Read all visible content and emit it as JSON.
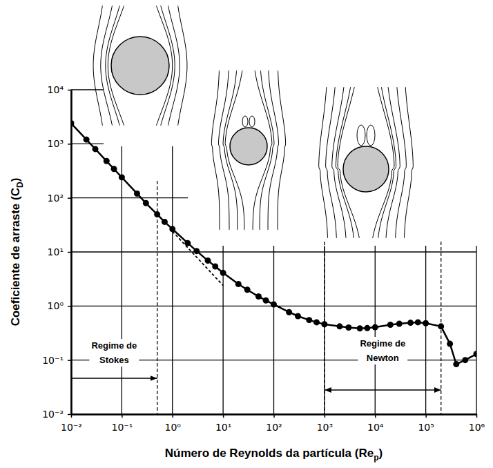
{
  "chart_data": {
    "type": "line",
    "x_label": [
      "Número de Reynolds da partícula (Re",
      "p",
      ")"
    ],
    "y_label": [
      "Coeficiente de arraste (C",
      "D",
      ")"
    ],
    "log": true,
    "grid": true,
    "xlim": [
      0.01,
      1000000
    ],
    "ylim": [
      0.01,
      10000
    ],
    "xticks": [
      {
        "value": 0.01,
        "label": "10⁻²"
      },
      {
        "value": 0.1,
        "label": "10⁻¹"
      },
      {
        "value": 1,
        "label": "10⁰"
      },
      {
        "value": 10,
        "label": "10¹"
      },
      {
        "value": 100,
        "label": "10²"
      },
      {
        "value": 1000,
        "label": "10³"
      },
      {
        "value": 10000,
        "label": "10⁴"
      },
      {
        "value": 100000,
        "label": "10⁵"
      },
      {
        "value": 1000000,
        "label": "10⁶"
      }
    ],
    "yticks": [
      {
        "value": 0.01,
        "label": "10⁻²"
      },
      {
        "value": 0.1,
        "label": "10⁻¹"
      },
      {
        "value": 1,
        "label": "10⁰"
      },
      {
        "value": 10,
        "label": "10¹"
      },
      {
        "value": 100,
        "label": "10²"
      },
      {
        "value": 1000,
        "label": "10³"
      },
      {
        "value": 10000,
        "label": "10⁴"
      }
    ],
    "series": [
      {
        "x": [
          0.01,
          0.02,
          0.03,
          0.05,
          0.07,
          0.1,
          0.2,
          0.3,
          0.5,
          0.7,
          1,
          2,
          3,
          5,
          7,
          10,
          20,
          30,
          50,
          70,
          100,
          200,
          300,
          500,
          700,
          1000,
          2000,
          3000,
          5000,
          7000,
          10000,
          20000,
          30000,
          50000,
          70000,
          100000,
          200000,
          300000,
          400000,
          600000,
          1000000
        ],
        "values": [
          2400,
          1200,
          800,
          480,
          343,
          240,
          120,
          80,
          49.5,
          36,
          26.5,
          14.6,
          10.4,
          6.9,
          5.4,
          4.1,
          2.55,
          2.0,
          1.5,
          1.27,
          1.07,
          0.77,
          0.65,
          0.55,
          0.5,
          0.46,
          0.42,
          0.4,
          0.385,
          0.39,
          0.405,
          0.45,
          0.47,
          0.49,
          0.5,
          0.48,
          0.42,
          0.2,
          0.084,
          0.1,
          0.13
        ],
        "color": "#000000",
        "marker": "circle",
        "line_style": "solid"
      },
      {
        "x": [
          1,
          10
        ],
        "values": [
          24,
          2.4
        ],
        "color": "#000000",
        "line_style": "dashed"
      }
    ],
    "annotations": [
      {
        "text": "Regime de Stokes",
        "x": [
          0.01,
          0.5
        ],
        "marker": "arrow-end"
      },
      {
        "text": "Regime de Newton",
        "x": [
          1000,
          200000
        ],
        "marker": "arrow-both"
      }
    ]
  }
}
